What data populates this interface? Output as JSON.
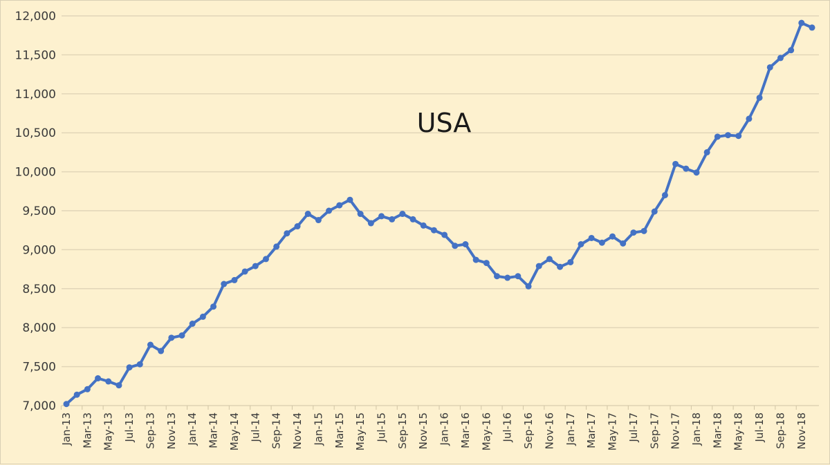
{
  "chart_data": {
    "type": "line",
    "title": "USA",
    "xlabel": "",
    "ylabel": "",
    "ylim": [
      7000,
      12000
    ],
    "yticks": [
      7000,
      7500,
      8000,
      8500,
      9000,
      9500,
      10000,
      10500,
      11000,
      11500,
      12000
    ],
    "ytick_labels": [
      "7,000",
      "7,500",
      "8,000",
      "8,500",
      "9,000",
      "9,500",
      "10,000",
      "10,500",
      "11,000",
      "11,500",
      "12,000"
    ],
    "xtick_labels": [
      "Jan-13",
      "Mar-13",
      "May-13",
      "Jul-13",
      "Sep-13",
      "Nov-13",
      "Jan-14",
      "Mar-14",
      "May-14",
      "Jul-14",
      "Sep-14",
      "Nov-14",
      "Jan-15",
      "Mar-15",
      "May-15",
      "Jul-15",
      "Sep-15",
      "Nov-15",
      "Jan-16",
      "Mar-16",
      "May-16",
      "Jul-16",
      "Sep-16",
      "Nov-16",
      "Jan-17",
      "Mar-17",
      "May-17",
      "Jul-17",
      "Sep-17",
      "Nov-17",
      "Jan-18",
      "Mar-18",
      "May-18",
      "Jul-18",
      "Sep-18",
      "Nov-18"
    ],
    "grid": true,
    "legend": null,
    "line_color": "#4472C4",
    "background_color": "#FDF1CF",
    "x": [
      "Jan-13",
      "Feb-13",
      "Mar-13",
      "Apr-13",
      "May-13",
      "Jun-13",
      "Jul-13",
      "Aug-13",
      "Sep-13",
      "Oct-13",
      "Nov-13",
      "Dec-13",
      "Jan-14",
      "Feb-14",
      "Mar-14",
      "Apr-14",
      "May-14",
      "Jun-14",
      "Jul-14",
      "Aug-14",
      "Sep-14",
      "Oct-14",
      "Nov-14",
      "Dec-14",
      "Jan-15",
      "Feb-15",
      "Mar-15",
      "Apr-15",
      "May-15",
      "Jun-15",
      "Jul-15",
      "Aug-15",
      "Sep-15",
      "Oct-15",
      "Nov-15",
      "Dec-15",
      "Jan-16",
      "Feb-16",
      "Mar-16",
      "Apr-16",
      "May-16",
      "Jun-16",
      "Jul-16",
      "Aug-16",
      "Sep-16",
      "Oct-16",
      "Nov-16",
      "Dec-16",
      "Jan-17",
      "Feb-17",
      "Mar-17",
      "Apr-17",
      "May-17",
      "Jun-17",
      "Jul-17",
      "Aug-17",
      "Sep-17",
      "Oct-17",
      "Nov-17",
      "Dec-17",
      "Jan-18",
      "Feb-18",
      "Mar-18",
      "Apr-18",
      "May-18",
      "Jun-18",
      "Jul-18",
      "Aug-18",
      "Sep-18",
      "Oct-18",
      "Nov-18",
      "Dec-18"
    ],
    "series": [
      {
        "name": "USA",
        "values": [
          7020,
          7140,
          7210,
          7350,
          7310,
          7260,
          7490,
          7530,
          7780,
          7700,
          7870,
          7900,
          8050,
          8140,
          8270,
          8560,
          8610,
          8720,
          8790,
          8880,
          9040,
          9210,
          9300,
          9460,
          9380,
          9500,
          9570,
          9640,
          9460,
          9340,
          9430,
          9390,
          9460,
          9390,
          9310,
          9250,
          9190,
          9050,
          9070,
          8870,
          8830,
          8660,
          8640,
          8660,
          8530,
          8790,
          8880,
          8780,
          8840,
          9070,
          9150,
          9090,
          9170,
          9080,
          9220,
          9240,
          9490,
          9700,
          10100,
          10040,
          9990,
          10250,
          10450,
          10470,
          10460,
          10680,
          10950,
          11340,
          11460,
          11560,
          11910,
          11850
        ]
      }
    ]
  }
}
